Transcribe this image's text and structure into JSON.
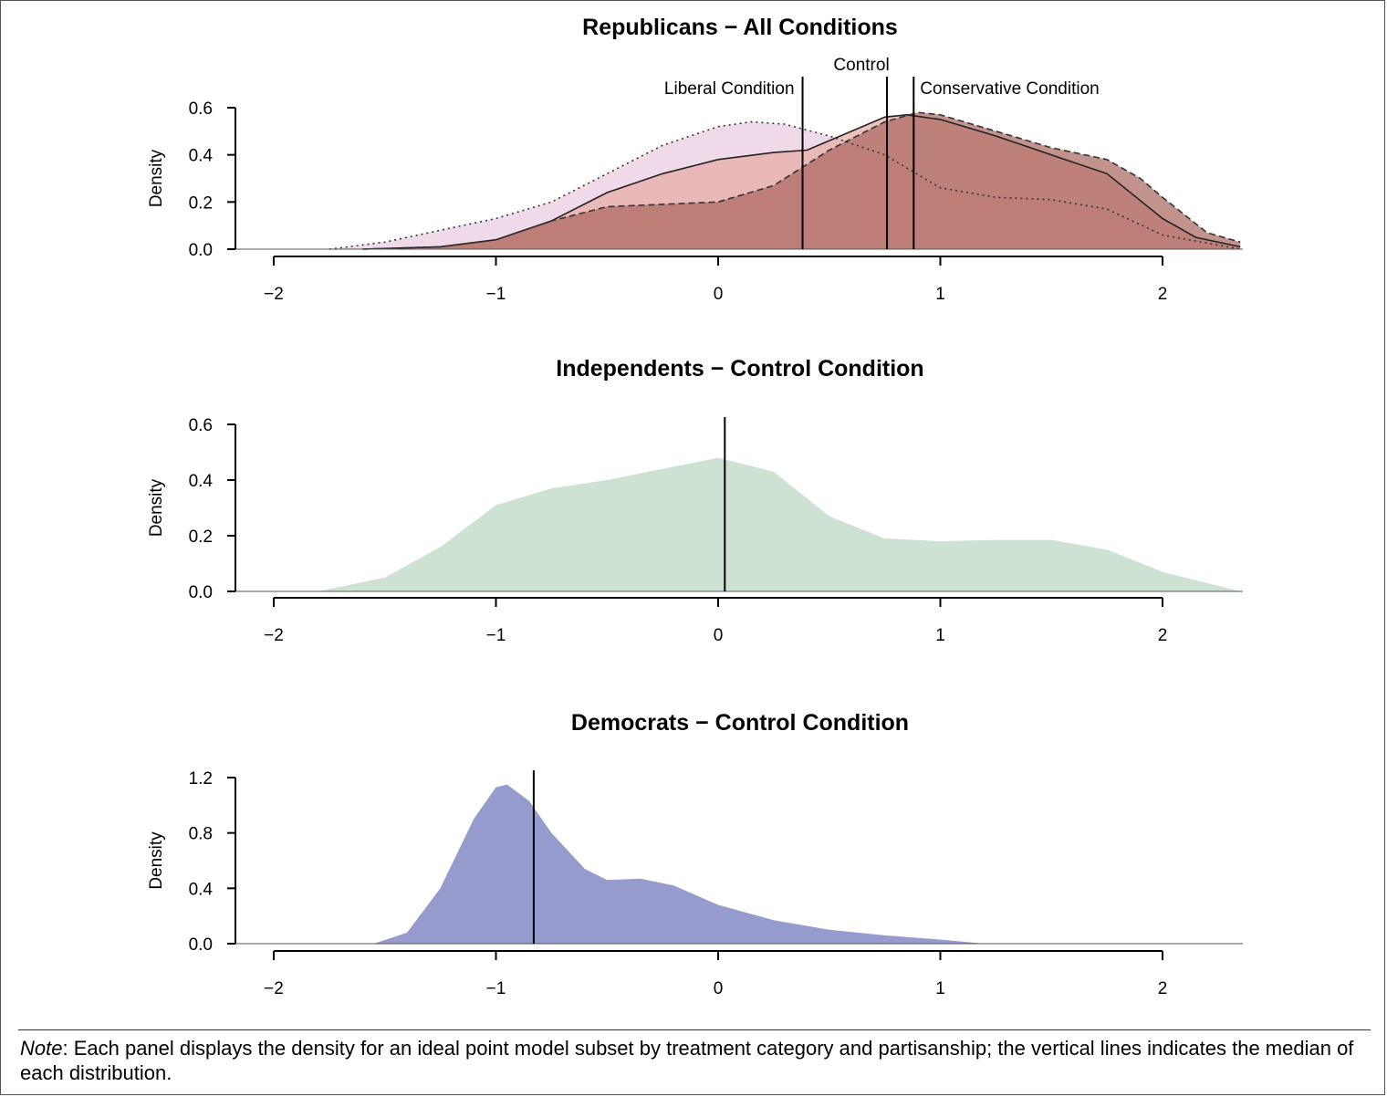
{
  "chart_data": [
    {
      "type": "area",
      "title": "Republicans − All Conditions",
      "xlabel": "",
      "ylabel": "Density",
      "xlim": [
        -2.1,
        2.35
      ],
      "ylim": [
        0,
        0.6
      ],
      "xticks": [
        -2,
        -1,
        0,
        1,
        2
      ],
      "yticks": [
        0.0,
        0.2,
        0.4,
        0.6
      ],
      "xtick_labels": [
        "−2",
        "−1",
        "0",
        "1",
        "2"
      ],
      "ytick_labels": [
        "0.0",
        "0.2",
        "0.4",
        "0.6"
      ],
      "series": [
        {
          "name": "Liberal Condition",
          "style": "dotted",
          "fill": "#e9c9df",
          "x": [
            -1.75,
            -1.5,
            -1.25,
            -1.0,
            -0.75,
            -0.5,
            -0.25,
            0.0,
            0.15,
            0.3,
            0.5,
            0.75,
            1.0,
            1.25,
            1.5,
            1.75,
            2.0,
            2.35
          ],
          "y": [
            0.0,
            0.03,
            0.08,
            0.13,
            0.2,
            0.32,
            0.44,
            0.52,
            0.54,
            0.53,
            0.48,
            0.4,
            0.26,
            0.22,
            0.21,
            0.17,
            0.06,
            0.0
          ],
          "median": 0.38
        },
        {
          "name": "Control",
          "style": "solid",
          "fill": "#e6a9a3",
          "x": [
            -1.6,
            -1.25,
            -1.0,
            -0.75,
            -0.5,
            -0.25,
            0.0,
            0.25,
            0.4,
            0.55,
            0.75,
            0.85,
            1.0,
            1.25,
            1.5,
            1.75,
            2.0,
            2.15,
            2.35
          ],
          "y": [
            0.0,
            0.01,
            0.04,
            0.12,
            0.24,
            0.32,
            0.38,
            0.41,
            0.42,
            0.48,
            0.56,
            0.57,
            0.55,
            0.48,
            0.4,
            0.32,
            0.13,
            0.05,
            0.01
          ],
          "median": 0.76
        },
        {
          "name": "Conservative Condition",
          "style": "dashed",
          "fill": "#a8655b",
          "x": [
            -1.6,
            -1.25,
            -1.0,
            -0.75,
            -0.5,
            -0.25,
            0.0,
            0.25,
            0.5,
            0.75,
            0.9,
            1.0,
            1.25,
            1.5,
            1.75,
            1.9,
            2.0,
            2.2,
            2.35
          ],
          "y": [
            0.0,
            0.01,
            0.04,
            0.12,
            0.18,
            0.19,
            0.2,
            0.27,
            0.42,
            0.54,
            0.58,
            0.57,
            0.5,
            0.43,
            0.38,
            0.3,
            0.22,
            0.07,
            0.03
          ],
          "median": 0.88
        }
      ],
      "annotations": [
        "Liberal Condition",
        "Control",
        "Conservative Condition"
      ]
    },
    {
      "type": "area",
      "title": "Independents − Control Condition",
      "xlabel": "",
      "ylabel": "Density",
      "xlim": [
        -2.1,
        2.35
      ],
      "ylim": [
        0,
        0.6
      ],
      "xticks": [
        -2,
        -1,
        0,
        1,
        2
      ],
      "yticks": [
        0.0,
        0.2,
        0.4,
        0.6
      ],
      "xtick_labels": [
        "−2",
        "−1",
        "0",
        "1",
        "2"
      ],
      "ytick_labels": [
        "0.0",
        "0.2",
        "0.4",
        "0.6"
      ],
      "series": [
        {
          "fill": "#cde2d3",
          "x": [
            -1.8,
            -1.5,
            -1.25,
            -1.0,
            -0.75,
            -0.5,
            -0.25,
            0.0,
            0.25,
            0.5,
            0.75,
            1.0,
            1.25,
            1.5,
            1.75,
            2.0,
            2.35
          ],
          "y": [
            0.0,
            0.05,
            0.16,
            0.31,
            0.37,
            0.4,
            0.44,
            0.48,
            0.43,
            0.27,
            0.19,
            0.18,
            0.185,
            0.185,
            0.15,
            0.07,
            0.0
          ],
          "median": 0.03
        }
      ]
    },
    {
      "type": "area",
      "title": "Democrats − Control Condition",
      "xlabel": "",
      "ylabel": "Density",
      "xlim": [
        -2.1,
        2.35
      ],
      "ylim": [
        0,
        1.2
      ],
      "xticks": [
        -2,
        -1,
        0,
        1,
        2
      ],
      "yticks": [
        0.0,
        0.4,
        0.8,
        1.2
      ],
      "xtick_labels": [
        "−2",
        "−1",
        "0",
        "1",
        "2"
      ],
      "ytick_labels": [
        "0.0",
        "0.4",
        "0.8",
        "1.2"
      ],
      "series": [
        {
          "fill": "#959bcc",
          "x": [
            -1.55,
            -1.4,
            -1.25,
            -1.1,
            -1.0,
            -0.95,
            -0.85,
            -0.75,
            -0.6,
            -0.5,
            -0.35,
            -0.2,
            0.0,
            0.25,
            0.5,
            0.75,
            1.0,
            1.2
          ],
          "y": [
            0.0,
            0.08,
            0.4,
            0.9,
            1.13,
            1.15,
            1.03,
            0.8,
            0.54,
            0.46,
            0.47,
            0.42,
            0.28,
            0.17,
            0.1,
            0.06,
            0.03,
            0.0
          ],
          "median": -0.83
        }
      ]
    }
  ],
  "note": {
    "label": "Note",
    "text": ": Each panel displays the density for an ideal point model subset by treatment category and partisanship; the vertical lines indicates the median of each distribution."
  }
}
